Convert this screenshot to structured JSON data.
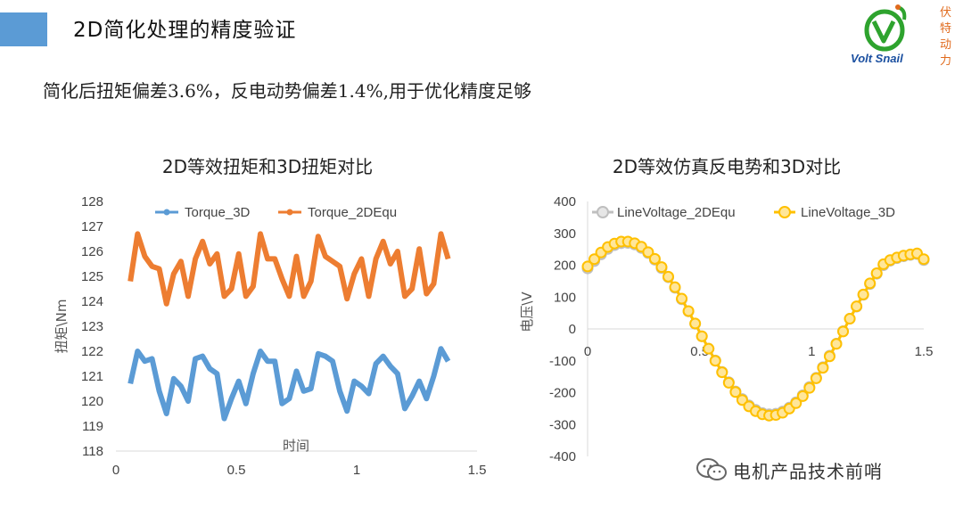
{
  "slide": {
    "title": "2D简化处理的精度验证",
    "subtitle": "简化后扭矩偏差3.6%，反电动势偏差1.4%,用于优化精度足够"
  },
  "logo": {
    "brand": "Volt Snail",
    "vertical_text": [
      "伏",
      "特",
      "动",
      "力"
    ],
    "colors": {
      "green": "#2ea32e",
      "blue": "#1a4fa0",
      "orange": "#e06a1c"
    }
  },
  "watermark": {
    "text": "电机产品技术前哨",
    "icon": "wechat-icon"
  },
  "chart_data": [
    {
      "type": "line",
      "title": "2D等效扭矩和3D扭矩对比",
      "xlabel": "时间",
      "ylabel": "扭矩\\Nm",
      "xlim": [
        0,
        1.5
      ],
      "ylim": [
        118,
        128
      ],
      "xticks": [
        "0",
        "0.5",
        "1",
        "1.5"
      ],
      "yticks": [
        "118",
        "119",
        "120",
        "121",
        "122",
        "123",
        "124",
        "125",
        "126",
        "127",
        "128"
      ],
      "legend": "top",
      "grid": false,
      "x": [
        0.06,
        0.09,
        0.12,
        0.15,
        0.18,
        0.21,
        0.24,
        0.27,
        0.3,
        0.33,
        0.36,
        0.39,
        0.42,
        0.45,
        0.48,
        0.51,
        0.54,
        0.57,
        0.6,
        0.63,
        0.66,
        0.69,
        0.72,
        0.75,
        0.78,
        0.81,
        0.84,
        0.87,
        0.9,
        0.93,
        0.96,
        0.99,
        1.02,
        1.05,
        1.08,
        1.11,
        1.14,
        1.17,
        1.2,
        1.23,
        1.26,
        1.29,
        1.32,
        1.35,
        1.38
      ],
      "series": [
        {
          "name": "Torque_3D",
          "color": "#5b9bd5",
          "values": [
            120.7,
            122.0,
            121.6,
            121.7,
            120.4,
            119.5,
            120.9,
            120.6,
            120.0,
            121.7,
            121.8,
            121.3,
            121.1,
            119.3,
            120.1,
            120.8,
            119.9,
            121.1,
            122.0,
            121.6,
            121.6,
            119.9,
            120.1,
            121.2,
            120.4,
            120.5,
            121.9,
            121.8,
            121.6,
            120.4,
            119.6,
            120.8,
            120.6,
            120.3,
            121.5,
            121.8,
            121.4,
            121.1,
            119.7,
            120.2,
            120.8,
            120.1,
            121.0,
            122.1,
            121.6
          ]
        },
        {
          "name": "Torque_2DEqu",
          "color": "#ed7d31",
          "values": [
            124.8,
            126.7,
            125.8,
            125.4,
            125.3,
            123.9,
            125.1,
            125.6,
            124.2,
            125.7,
            126.4,
            125.5,
            125.9,
            124.2,
            124.5,
            125.9,
            124.2,
            124.6,
            126.7,
            125.7,
            125.7,
            124.9,
            124.2,
            125.8,
            124.2,
            124.8,
            126.6,
            125.8,
            125.6,
            125.4,
            124.1,
            125.1,
            125.7,
            124.2,
            125.7,
            126.4,
            125.5,
            126.0,
            124.2,
            124.5,
            126.1,
            124.3,
            124.7,
            126.7,
            125.7
          ]
        }
      ]
    },
    {
      "type": "line",
      "title": "2D等效仿真反电势和3D对比",
      "xlabel": "",
      "ylabel": "电压\\V",
      "xlim": [
        0,
        1.5
      ],
      "ylim": [
        -400,
        400
      ],
      "xticks": [
        "0",
        "0.5",
        "1",
        "1.5"
      ],
      "yticks": [
        "-400",
        "-300",
        "-200",
        "-100",
        "0",
        "100",
        "200",
        "300",
        "400"
      ],
      "legend": "top",
      "grid": false,
      "x": [
        0.0,
        0.03,
        0.06,
        0.09,
        0.12,
        0.15,
        0.18,
        0.21,
        0.24,
        0.27,
        0.3,
        0.33,
        0.36,
        0.39,
        0.42,
        0.45,
        0.48,
        0.51,
        0.54,
        0.57,
        0.6,
        0.63,
        0.66,
        0.69,
        0.72,
        0.75,
        0.78,
        0.81,
        0.84,
        0.87,
        0.9,
        0.93,
        0.96,
        0.99,
        1.02,
        1.05,
        1.08,
        1.11,
        1.14,
        1.17,
        1.2,
        1.23,
        1.26,
        1.29,
        1.32,
        1.35,
        1.38,
        1.41,
        1.44,
        1.47,
        1.5
      ],
      "series": [
        {
          "name": "LineVoltage_2DEqu",
          "color": "#bfbfbf",
          "values": [
            190,
            213,
            234,
            251,
            263,
            269,
            270,
            265,
            254,
            238,
            217,
            191,
            162,
            129,
            93,
            55,
            16,
            -23,
            -62,
            -99,
            -135,
            -167,
            -196,
            -220,
            -240,
            -254,
            -264,
            -268,
            -266,
            -259,
            -247,
            -230,
            -208,
            -182,
            -153,
            -120,
            -84,
            -46,
            -7,
            32,
            70,
            107,
            141,
            173,
            200,
            214,
            222,
            228,
            232,
            235,
            216
          ]
        },
        {
          "name": "LineVoltage_3D",
          "color": "#ffc000",
          "values": [
            196,
            219,
            240,
            257,
            268,
            274,
            274,
            269,
            258,
            241,
            220,
            194,
            164,
            131,
            95,
            56,
            17,
            -23,
            -62,
            -100,
            -136,
            -169,
            -198,
            -223,
            -243,
            -258,
            -268,
            -272,
            -270,
            -263,
            -250,
            -233,
            -211,
            -185,
            -155,
            -122,
            -86,
            -47,
            -8,
            32,
            71,
            108,
            143,
            175,
            203,
            216,
            224,
            230,
            234,
            237,
            219
          ]
        }
      ]
    }
  ]
}
